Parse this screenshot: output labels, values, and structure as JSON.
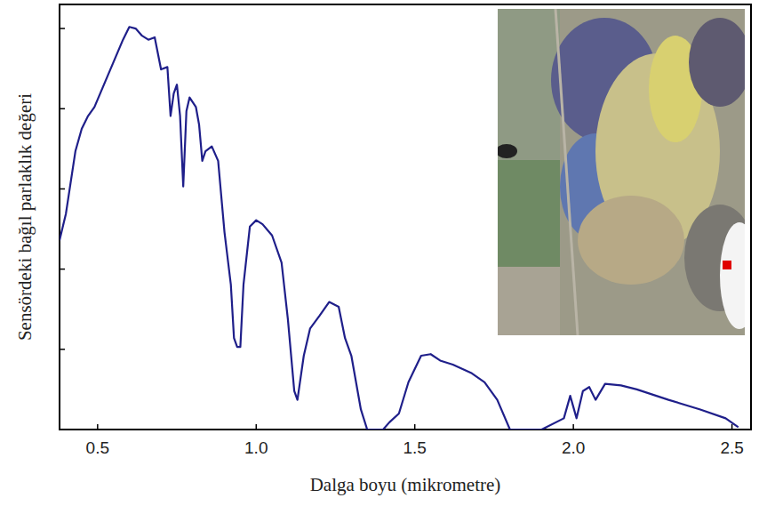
{
  "chart_data": {
    "type": "line",
    "x_label": "Dalga boyu (mikrometre)",
    "y_label": "Sensördeki bağıl parlaklık  değeri",
    "color": "#1f1f8a",
    "xlim": [
      0.38,
      2.56
    ],
    "ylim": [
      0,
      5.3
    ],
    "xticks": [
      0.5,
      {
        "value": 1,
        "label": "1.0"
      },
      1.5,
      {
        "value": 2,
        "label": "2.0"
      },
      2.5
    ],
    "yticks": [
      0,
      1,
      2,
      3,
      4,
      5
    ],
    "tick_labels": "x",
    "grid": false,
    "x": [
      0.38,
      0.4,
      0.43,
      0.45,
      0.47,
      0.49,
      0.52,
      0.55,
      0.58,
      0.6,
      0.62,
      0.64,
      0.66,
      0.68,
      0.7,
      0.72,
      0.73,
      0.74,
      0.75,
      0.76,
      0.77,
      0.78,
      0.79,
      0.81,
      0.82,
      0.83,
      0.84,
      0.86,
      0.88,
      0.9,
      0.92,
      0.93,
      0.94,
      0.95,
      0.96,
      0.98,
      1.0,
      1.02,
      1.05,
      1.08,
      1.1,
      1.12,
      1.13,
      1.15,
      1.17,
      1.2,
      1.23,
      1.26,
      1.28,
      1.3,
      1.33,
      1.35,
      1.37,
      1.4,
      1.42,
      1.45,
      1.48,
      1.52,
      1.55,
      1.58,
      1.62,
      1.68,
      1.72,
      1.76,
      1.8,
      1.9,
      1.97,
      1.99,
      2.01,
      2.03,
      2.05,
      2.07,
      2.1,
      2.15,
      2.2,
      2.3,
      2.4,
      2.48,
      2.52
    ],
    "values": [
      2.36,
      2.69,
      3.47,
      3.75,
      3.91,
      4.02,
      4.3,
      4.58,
      4.86,
      5.02,
      5.0,
      4.91,
      4.86,
      4.89,
      4.49,
      4.52,
      3.91,
      4.19,
      4.3,
      3.91,
      3.03,
      3.97,
      4.14,
      4.02,
      3.8,
      3.35,
      3.47,
      3.53,
      3.35,
      2.46,
      1.81,
      1.14,
      1.03,
      1.03,
      1.81,
      2.53,
      2.61,
      2.56,
      2.42,
      2.08,
      1.37,
      0.48,
      0.37,
      0.92,
      1.26,
      1.42,
      1.59,
      1.53,
      1.14,
      0.92,
      0.25,
      0,
      0,
      0,
      0.09,
      0.2,
      0.59,
      0.92,
      0.94,
      0.86,
      0.81,
      0.7,
      0.59,
      0.37,
      0,
      0,
      0.14,
      0.42,
      0.14,
      0.48,
      0.53,
      0.37,
      0.57,
      0.55,
      0.5,
      0.37,
      0.25,
      0.14,
      0.03
    ]
  }
}
